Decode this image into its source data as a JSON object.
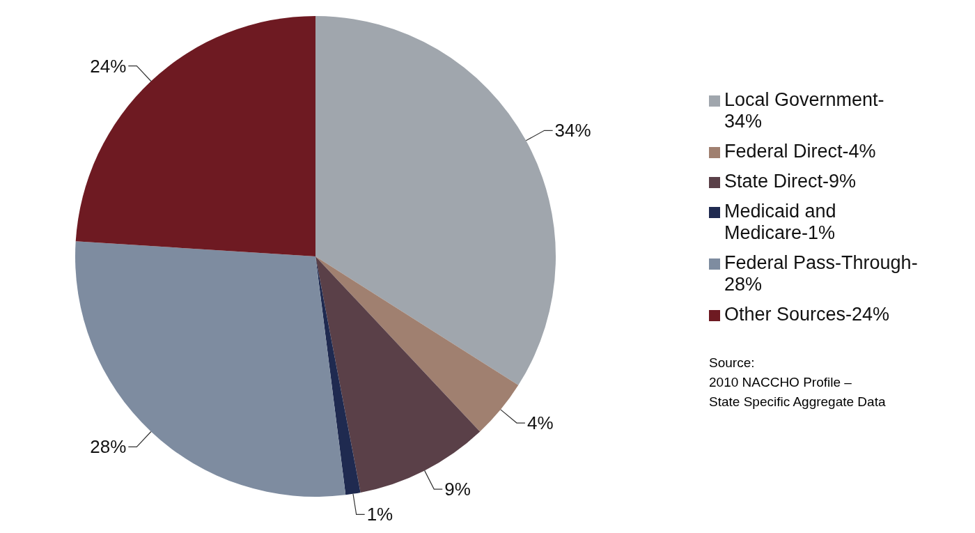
{
  "chart_data": {
    "type": "pie",
    "categories": [
      "Local Government-34%",
      "Federal Direct-4%",
      "State Direct-9%",
      "Medicaid and Medicare-1%",
      "Federal Pass-Through-28%",
      "Other Sources-24%"
    ],
    "values": [
      34,
      4,
      9,
      1,
      28,
      24
    ],
    "value_labels": [
      "34%",
      "4%",
      "9%",
      "1%",
      "28%",
      "24%"
    ],
    "colors": [
      "#a0a6ad",
      "#a08070",
      "#5a4048",
      "#1f2a50",
      "#7e8ca0",
      "#6e1a22"
    ],
    "legend": "right",
    "annotations": [
      "Source:\n2010 NACCHO Profile –\nState Specific Aggregate Data"
    ]
  }
}
